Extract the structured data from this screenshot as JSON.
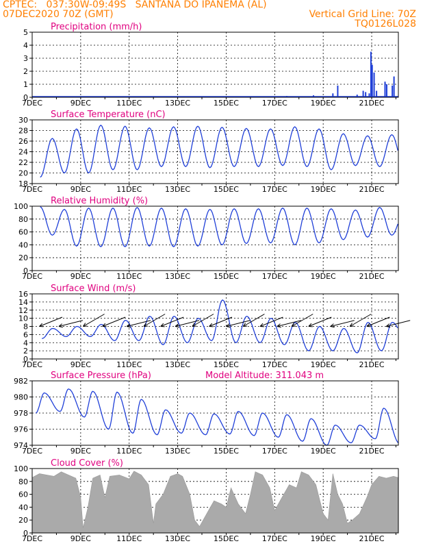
{
  "header": {
    "line1": "CPTEC:   037:30W-09:49S   SANTANA DO IPANEMA (AL)",
    "line2_left": "07DEC2020 70Z (GMT)",
    "line2_right": "Vertical Grid Line: 70Z",
    "line3_right": "TQ0126L028"
  },
  "colors": {
    "header": "#ff7f00",
    "title": "#e0007f",
    "series": "#1f3fd8",
    "cloud": "#aaaaaa"
  },
  "x_axis": {
    "tick_labels": [
      "7DEC",
      "9DEC",
      "11DEC",
      "13DEC",
      "15DEC",
      "17DEC",
      "19DEC",
      "21DEC"
    ],
    "tick_days": [
      0,
      2,
      4,
      6,
      8,
      10,
      12,
      14
    ],
    "range_days": [
      0,
      15.1
    ]
  },
  "chart_data": [
    {
      "type": "bar",
      "title": "Precipitation (mm/h)",
      "ylim": [
        0,
        5
      ],
      "ytick_labels": [
        "0",
        "1",
        "2",
        "3",
        "4",
        "5"
      ],
      "ytick_values": [
        0,
        1,
        2,
        3,
        4,
        5
      ],
      "bars": [
        [
          10.5,
          0.1
        ],
        [
          11.6,
          0.15
        ],
        [
          12.4,
          0.3
        ],
        [
          12.6,
          0.9
        ],
        [
          13.4,
          0.2
        ],
        [
          13.65,
          0.5
        ],
        [
          13.75,
          0.4
        ],
        [
          13.9,
          0.3
        ],
        [
          13.97,
          3.5
        ],
        [
          14.02,
          2.5
        ],
        [
          14.1,
          1.9
        ],
        [
          14.2,
          0.5
        ],
        [
          14.55,
          1.2
        ],
        [
          14.62,
          1.0
        ],
        [
          14.85,
          0.9
        ],
        [
          14.92,
          1.6
        ]
      ]
    },
    {
      "type": "line",
      "title": "Surface Temperature (nC)",
      "ylim": [
        18,
        30
      ],
      "ytick_labels": [
        "18",
        "20",
        "22",
        "24",
        "26",
        "28",
        "30"
      ],
      "ytick_values": [
        18,
        20,
        22,
        24,
        26,
        28,
        30
      ],
      "daily_max": [
        26.5,
        28.3,
        29.0,
        28.8,
        28.5,
        28.7,
        28.8,
        28.6,
        28.4,
        28.3,
        28.7,
        28.3,
        27.4,
        27.0,
        27.2,
        26.6
      ],
      "daily_min": [
        19.2,
        20.0,
        20.0,
        20.6,
        20.6,
        21.2,
        21.2,
        21.0,
        21.2,
        21.2,
        21.4,
        21.2,
        20.6,
        21.4,
        21.2,
        21.2
      ],
      "peak_phase": 0.83,
      "min_phase": 0.33
    },
    {
      "type": "line",
      "title": "Relative Humidity (%)",
      "ylim": [
        0,
        100
      ],
      "ytick_labels": [
        "0",
        "20",
        "40",
        "60",
        "80",
        "100"
      ],
      "ytick_values": [
        0,
        20,
        40,
        60,
        80,
        100
      ],
      "daily_max": [
        99,
        95,
        97,
        97,
        98,
        97,
        96,
        95,
        96,
        96,
        97,
        97,
        96,
        94,
        98,
        90
      ],
      "daily_min": [
        55,
        38,
        37,
        37,
        38,
        37,
        38,
        40,
        42,
        43,
        40,
        43,
        48,
        52,
        55,
        55
      ],
      "peak_phase": 0.33,
      "min_phase": 0.83
    },
    {
      "type": "line",
      "title": "Surface Wind (m/s)",
      "ylim": [
        0,
        16
      ],
      "ytick_labels": [
        "0",
        "2",
        "4",
        "6",
        "8",
        "10",
        "12",
        "14",
        "16"
      ],
      "ytick_values": [
        0,
        2,
        4,
        6,
        8,
        10,
        12,
        14,
        16
      ],
      "daily_max": [
        7.5,
        8.0,
        8.5,
        9.5,
        10.5,
        10.5,
        10.0,
        14.5,
        10.5,
        10.0,
        9.0,
        8.0,
        7.5,
        9.0,
        9.0,
        7.5
      ],
      "daily_min": [
        5.0,
        5.5,
        5.5,
        4.5,
        4.5,
        3.5,
        4.0,
        4.5,
        4.0,
        4.0,
        3.5,
        2.0,
        2.0,
        1.5,
        2.0,
        5.0
      ],
      "peak_phase": 0.85,
      "min_phase": 0.4,
      "vector_days": [
        0.3,
        1.1,
        2.1,
        2.9,
        3.9,
        4.6,
        5.3,
        5.9,
        6.6,
        7.3,
        8.0,
        8.7,
        9.4,
        10.1,
        10.7,
        11.4,
        12.3,
        13.1,
        13.8,
        14.6
      ]
    },
    {
      "type": "line",
      "title": "Surface Pressure (hPa)",
      "annotation": "Model Altitude: 311.043 m",
      "ylim": [
        974,
        982
      ],
      "ytick_labels": [
        "974",
        "976",
        "978",
        "980",
        "982"
      ],
      "ytick_values": [
        974,
        976,
        978,
        980,
        982
      ],
      "daily_max": [
        980.5,
        981.0,
        980.7,
        980.6,
        979.7,
        978.4,
        978.0,
        977.9,
        978.2,
        978.0,
        977.8,
        977.3,
        976.5,
        976.5,
        978.6,
        976.3
      ],
      "daily_min": [
        978.0,
        978.2,
        977.5,
        976.0,
        975.5,
        975.3,
        975.5,
        975.3,
        975.4,
        975.2,
        975.0,
        974.5,
        974.0,
        974.3,
        974.8,
        974.2
      ],
      "peak_phase": 0.5,
      "min_phase": 0.15
    },
    {
      "type": "area",
      "title": "Cloud Cover (%)",
      "ylim": [
        0,
        100
      ],
      "ytick_labels": [
        "0",
        "20",
        "40",
        "60",
        "80",
        "100"
      ],
      "ytick_values": [
        0,
        20,
        40,
        60,
        80,
        100
      ],
      "points": [
        [
          0,
          86
        ],
        [
          0.3,
          92
        ],
        [
          0.6,
          90
        ],
        [
          0.9,
          88
        ],
        [
          1.2,
          95
        ],
        [
          1.5,
          90
        ],
        [
          1.8,
          85
        ],
        [
          2.0,
          55
        ],
        [
          2.1,
          8
        ],
        [
          2.3,
          40
        ],
        [
          2.5,
          85
        ],
        [
          2.8,
          90
        ],
        [
          3.0,
          55
        ],
        [
          3.2,
          88
        ],
        [
          3.6,
          90
        ],
        [
          4.0,
          84
        ],
        [
          4.2,
          96
        ],
        [
          4.5,
          90
        ],
        [
          4.8,
          75
        ],
        [
          5.0,
          15
        ],
        [
          5.1,
          45
        ],
        [
          5.4,
          60
        ],
        [
          5.7,
          88
        ],
        [
          6.0,
          92
        ],
        [
          6.2,
          88
        ],
        [
          6.5,
          60
        ],
        [
          6.7,
          20
        ],
        [
          6.9,
          10
        ],
        [
          7.2,
          30
        ],
        [
          7.5,
          50
        ],
        [
          7.8,
          45
        ],
        [
          8.0,
          40
        ],
        [
          8.2,
          70
        ],
        [
          8.5,
          45
        ],
        [
          8.8,
          30
        ],
        [
          9.0,
          60
        ],
        [
          9.2,
          95
        ],
        [
          9.5,
          90
        ],
        [
          9.8,
          70
        ],
        [
          10.0,
          35
        ],
        [
          10.3,
          55
        ],
        [
          10.6,
          75
        ],
        [
          10.9,
          70
        ],
        [
          11.1,
          95
        ],
        [
          11.4,
          90
        ],
        [
          11.7,
          75
        ],
        [
          12.0,
          30
        ],
        [
          12.2,
          20
        ],
        [
          12.4,
          92
        ],
        [
          12.6,
          60
        ],
        [
          12.8,
          45
        ],
        [
          13.0,
          15
        ],
        [
          13.2,
          20
        ],
        [
          13.5,
          30
        ],
        [
          13.8,
          55
        ],
        [
          14.0,
          75
        ],
        [
          14.3,
          88
        ],
        [
          14.6,
          85
        ],
        [
          14.9,
          88
        ],
        [
          15.1,
          86
        ]
      ]
    }
  ]
}
